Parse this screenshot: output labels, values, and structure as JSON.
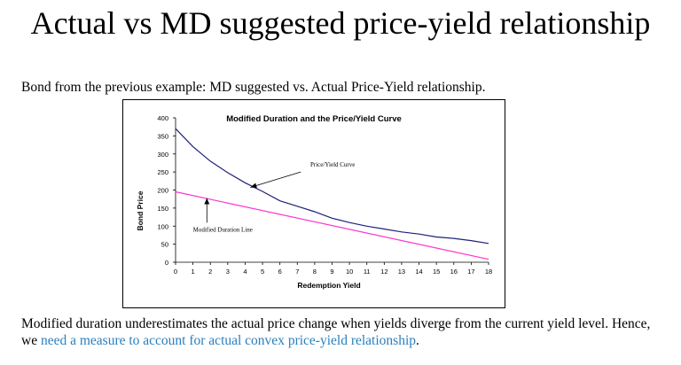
{
  "slide": {
    "title": "Actual vs MD suggested price-yield relationship",
    "intro": "Bond from the previous example: MD suggested vs. Actual Price-Yield relationship.",
    "outro_text": "Modified duration underestimates the actual price change when yields diverge from the current yield level. Hence, we ",
    "outro_link": "need a measure to account for actual convex price-yield relationship",
    "outro_end": "."
  },
  "colors": {
    "price_yield_curve": "#1f1f7a",
    "duration_line": "#ff33cc",
    "link": "#2a7fbd"
  },
  "chart_data": {
    "type": "line",
    "title": "Modified Duration and the Price/Yield Curve",
    "xlabel": "Redemption Yield",
    "ylabel": "Bond Price",
    "xlim": [
      0,
      18
    ],
    "ylim": [
      0,
      400
    ],
    "x_ticks": [
      0,
      1,
      2,
      3,
      4,
      5,
      6,
      7,
      8,
      9,
      10,
      11,
      12,
      13,
      14,
      15,
      16,
      17,
      18
    ],
    "y_ticks": [
      0,
      50,
      100,
      150,
      200,
      250,
      300,
      350,
      400
    ],
    "grid": false,
    "legend": "none",
    "series": [
      {
        "name": "Price/Yield Curve",
        "x": [
          0,
          1,
          2,
          3,
          4,
          5,
          6,
          7,
          8,
          9,
          10,
          11,
          12,
          13,
          14,
          15,
          16,
          17,
          18
        ],
        "values": [
          370,
          320,
          280,
          248,
          220,
          196,
          170,
          155,
          140,
          122,
          110,
          100,
          92,
          84,
          78,
          70,
          66,
          60,
          52
        ]
      },
      {
        "name": "Modified Duration Line",
        "x": [
          0,
          18
        ],
        "values": [
          195,
          8
        ]
      }
    ],
    "annotations": [
      {
        "text": "Price/Yield Curve",
        "x": 7.2,
        "y": 255,
        "arrow_to": [
          4.2,
          205
        ]
      },
      {
        "text": "Modified Duration Line",
        "x": 1.0,
        "y": 85,
        "arrow_to": [
          1.8,
          180
        ]
      }
    ]
  }
}
